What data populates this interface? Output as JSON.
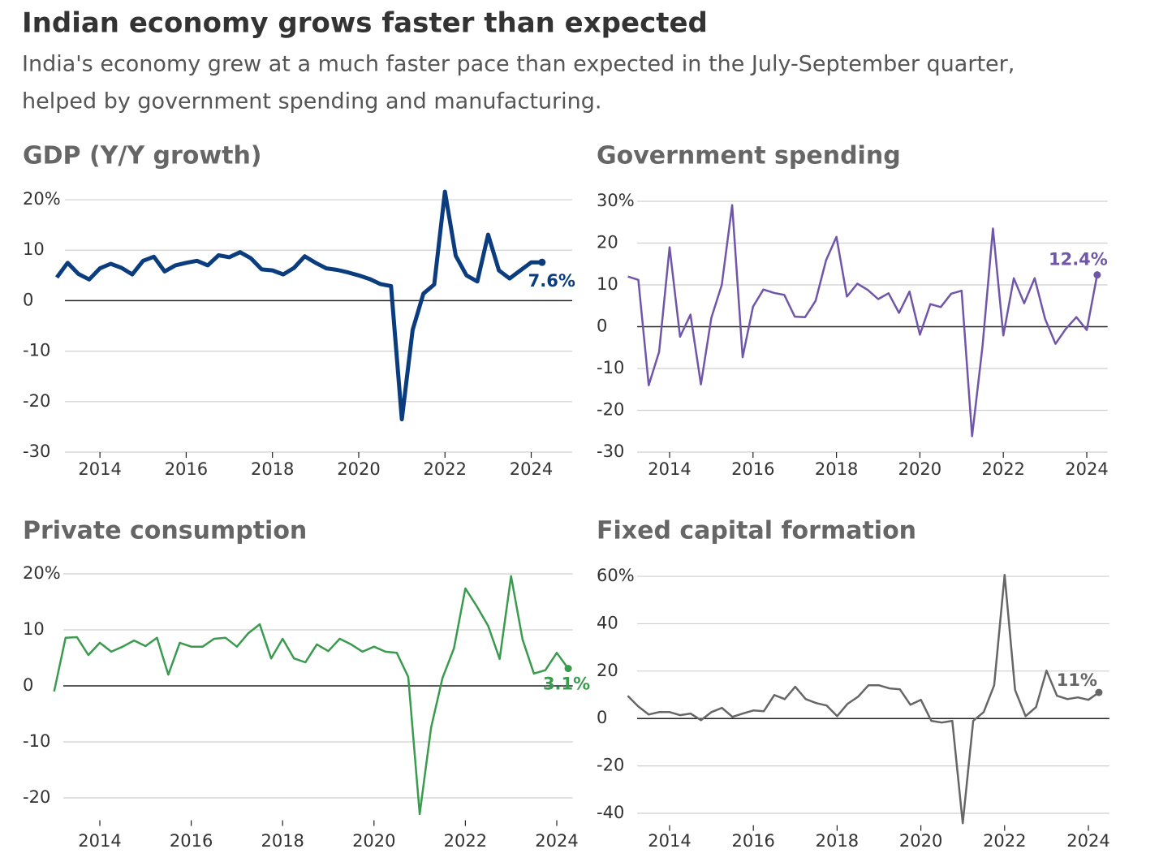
{
  "title": "Indian economy grows faster than expected",
  "subtitle": [
    "India's economy grew at a much faster pace than expected in the July-September quarter,",
    "helped by government spending and manufacturing."
  ],
  "chart_data": [
    {
      "type": "line",
      "title": "GDP (Y/Y growth)",
      "color": "#0b3d7e",
      "x": [
        2013,
        2013.25,
        2013.5,
        2013.75,
        2014,
        2014.25,
        2014.5,
        2014.75,
        2015,
        2015.25,
        2015.5,
        2015.75,
        2016,
        2016.25,
        2016.5,
        2016.75,
        2017,
        2017.25,
        2017.5,
        2017.75,
        2018,
        2018.25,
        2018.5,
        2018.75,
        2019,
        2019.25,
        2019.5,
        2019.75,
        2020,
        2020.25,
        2020.5,
        2020.75,
        2021,
        2021.25,
        2021.5,
        2021.75,
        2022,
        2022.25,
        2022.5,
        2022.75,
        2023,
        2023.25,
        2023.5,
        2023.75,
        2024,
        2024.25
      ],
      "values": [
        4.6,
        7.5,
        5.3,
        4.2,
        6.4,
        7.3,
        6.5,
        5.2,
        7.9,
        8.7,
        5.8,
        7.0,
        7.5,
        7.9,
        7.0,
        9.0,
        8.6,
        9.6,
        8.4,
        6.2,
        6.0,
        5.2,
        6.5,
        8.8,
        7.5,
        6.4,
        6.1,
        5.6,
        5.0,
        4.3,
        3.3,
        2.9,
        -23.5,
        -5.8,
        1.4,
        3.2,
        21.6,
        8.9,
        5.0,
        3.8,
        13.1,
        6.0,
        4.4,
        6.0,
        7.6,
        7.6
      ],
      "value_labels": [
        null,
        null,
        null,
        null,
        null,
        null,
        null,
        null,
        null,
        null,
        null,
        null,
        null,
        null,
        null,
        null,
        null,
        null,
        null,
        null,
        null,
        null,
        null,
        null,
        null,
        null,
        null,
        null,
        null,
        null,
        null,
        null,
        null,
        null,
        null,
        null,
        null,
        null,
        null,
        null,
        null,
        null,
        null,
        null,
        null,
        "7.6%"
      ],
      "xlim": [
        2013,
        2024.95
      ],
      "ylim": [
        -30,
        22
      ],
      "xticks": [
        2014,
        2016,
        2018,
        2020,
        2022,
        2024
      ],
      "yticks": [
        {
          "value": 20,
          "label": "20%"
        },
        10,
        0,
        -10,
        -20,
        -30
      ]
    },
    {
      "type": "line",
      "title": "Government spending",
      "color": "#7056a8",
      "x": [
        2013,
        2013.25,
        2013.5,
        2013.75,
        2014,
        2014.25,
        2014.5,
        2014.75,
        2015,
        2015.25,
        2015.5,
        2015.75,
        2016,
        2016.25,
        2016.5,
        2016.75,
        2017,
        2017.25,
        2017.5,
        2017.75,
        2018,
        2018.25,
        2018.5,
        2018.75,
        2019,
        2019.25,
        2019.5,
        2019.75,
        2020,
        2020.25,
        2020.5,
        2020.75,
        2021,
        2021.25,
        2021.5,
        2021.75,
        2022,
        2022.25,
        2022.5,
        2022.75,
        2023,
        2023.25,
        2023.5,
        2023.75,
        2024,
        2024.25
      ],
      "values": [
        12.0,
        11.2,
        -14,
        -6,
        19,
        -2.4,
        2.9,
        -13.8,
        2.1,
        10,
        29.1,
        -7.3,
        4.8,
        8.9,
        8.1,
        7.6,
        2.4,
        2.3,
        6.2,
        15.9,
        21.5,
        7.2,
        10.3,
        8.8,
        6.6,
        8.0,
        3.3,
        8.4,
        -1.9,
        5.4,
        4.7,
        7.9,
        8.6,
        -26.2,
        -4.8,
        23.5,
        -2.1,
        11.6,
        5.6,
        11.6,
        1.9,
        -4.1,
        -0.5,
        2.3,
        -0.8,
        12.4
      ],
      "value_labels": [
        null,
        null,
        null,
        null,
        null,
        null,
        null,
        null,
        null,
        null,
        null,
        null,
        null,
        null,
        null,
        null,
        null,
        null,
        null,
        null,
        null,
        null,
        null,
        null,
        null,
        null,
        null,
        null,
        null,
        null,
        null,
        null,
        null,
        null,
        null,
        null,
        null,
        null,
        null,
        null,
        null,
        null,
        null,
        null,
        null,
        "12.4%"
      ],
      "xlim": [
        2013,
        2024.5
      ],
      "ylim": [
        -30,
        30
      ],
      "xticks": [
        2014,
        2016,
        2018,
        2020,
        2022,
        2024
      ],
      "yticks": [
        {
          "value": 30,
          "label": "30%"
        },
        20,
        10,
        0,
        -10,
        -20,
        -30
      ]
    },
    {
      "type": "line",
      "title": "Private consumption",
      "color": "#3a9a4e",
      "x": [
        2013,
        2013.25,
        2013.5,
        2013.75,
        2014,
        2014.25,
        2014.5,
        2014.75,
        2015,
        2015.25,
        2015.5,
        2015.75,
        2016,
        2016.25,
        2016.5,
        2016.75,
        2017,
        2017.25,
        2017.5,
        2017.75,
        2018,
        2018.25,
        2018.5,
        2018.75,
        2019,
        2019.25,
        2019.5,
        2019.75,
        2020,
        2020.25,
        2020.5,
        2020.75,
        2021,
        2021.25,
        2021.5,
        2021.75,
        2022,
        2022.25,
        2022.5,
        2022.75,
        2023,
        2023.25,
        2023.5,
        2023.75,
        2024,
        2024.25
      ],
      "values": [
        -1.0,
        8.6,
        8.7,
        5.5,
        7.7,
        6.1,
        7.0,
        8.1,
        7.1,
        8.6,
        2.0,
        7.7,
        7.0,
        7.0,
        8.4,
        8.6,
        7.0,
        9.4,
        11.0,
        4.9,
        8.4,
        4.9,
        4.2,
        7.4,
        6.2,
        8.4,
        7.4,
        6.1,
        7.0,
        6.1,
        5.9,
        1.6,
        -22.9,
        -7.4,
        1.4,
        6.7,
        17.4,
        14.2,
        10.7,
        4.8,
        19.6,
        8.3,
        2.2,
        2.8,
        5.9,
        3.1
      ],
      "value_labels": [
        null,
        null,
        null,
        null,
        null,
        null,
        null,
        null,
        null,
        null,
        null,
        null,
        null,
        null,
        null,
        null,
        null,
        null,
        null,
        null,
        null,
        null,
        null,
        null,
        null,
        null,
        null,
        null,
        null,
        null,
        null,
        null,
        null,
        null,
        null,
        null,
        null,
        null,
        null,
        null,
        null,
        null,
        null,
        null,
        null,
        "3.1%"
      ],
      "xlim": [
        2013,
        2024.35
      ],
      "ylim": [
        -24,
        20
      ],
      "xticks": [
        2014,
        2016,
        2018,
        2020,
        2022,
        2024
      ],
      "yticks": [
        {
          "value": 20,
          "label": "20%"
        },
        10,
        0,
        -10,
        -20
      ]
    },
    {
      "type": "line",
      "title": "Fixed capital formation",
      "color": "#666666",
      "x": [
        2013,
        2013.25,
        2013.5,
        2013.75,
        2014,
        2014.25,
        2014.5,
        2014.75,
        2015,
        2015.25,
        2015.5,
        2015.75,
        2016,
        2016.25,
        2016.5,
        2016.75,
        2017,
        2017.25,
        2017.5,
        2017.75,
        2018,
        2018.25,
        2018.5,
        2018.75,
        2019,
        2019.25,
        2019.5,
        2019.75,
        2020,
        2020.25,
        2020.5,
        2020.75,
        2021,
        2021.25,
        2021.5,
        2021.75,
        2022,
        2022.25,
        2022.5,
        2022.75,
        2023,
        2023.25,
        2023.5,
        2023.75,
        2024,
        2024.25
      ],
      "values": [
        9.6,
        5.1,
        1.7,
        2.7,
        2.7,
        1.4,
        2.1,
        -0.7,
        2.7,
        4.5,
        0.7,
        2.1,
        3.4,
        3.1,
        9.9,
        8.2,
        13.4,
        8.2,
        6.5,
        5.5,
        1.0,
        6.2,
        9.2,
        14.0,
        14.0,
        12.7,
        12.3,
        5.8,
        7.9,
        -1.0,
        -1.7,
        -1.0,
        -44.2,
        -1.0,
        2.7,
        14.0,
        60.6,
        12.0,
        1.0,
        4.8,
        20.2,
        9.6,
        8.2,
        8.9,
        7.9,
        11
      ],
      "value_labels": [
        null,
        null,
        null,
        null,
        null,
        null,
        null,
        null,
        null,
        null,
        null,
        null,
        null,
        null,
        null,
        null,
        null,
        null,
        null,
        null,
        null,
        null,
        null,
        null,
        null,
        null,
        null,
        null,
        null,
        null,
        null,
        null,
        null,
        null,
        null,
        null,
        null,
        null,
        null,
        null,
        null,
        null,
        null,
        null,
        null,
        "11%"
      ],
      "xlim": [
        2013,
        2024.5
      ],
      "ylim": [
        -45,
        62
      ],
      "xticks": [
        2014,
        2016,
        2018,
        2020,
        2022,
        2024
      ],
      "yticks": [
        {
          "value": 60,
          "label": "60%"
        },
        40,
        20,
        0,
        -20,
        -40
      ]
    }
  ]
}
